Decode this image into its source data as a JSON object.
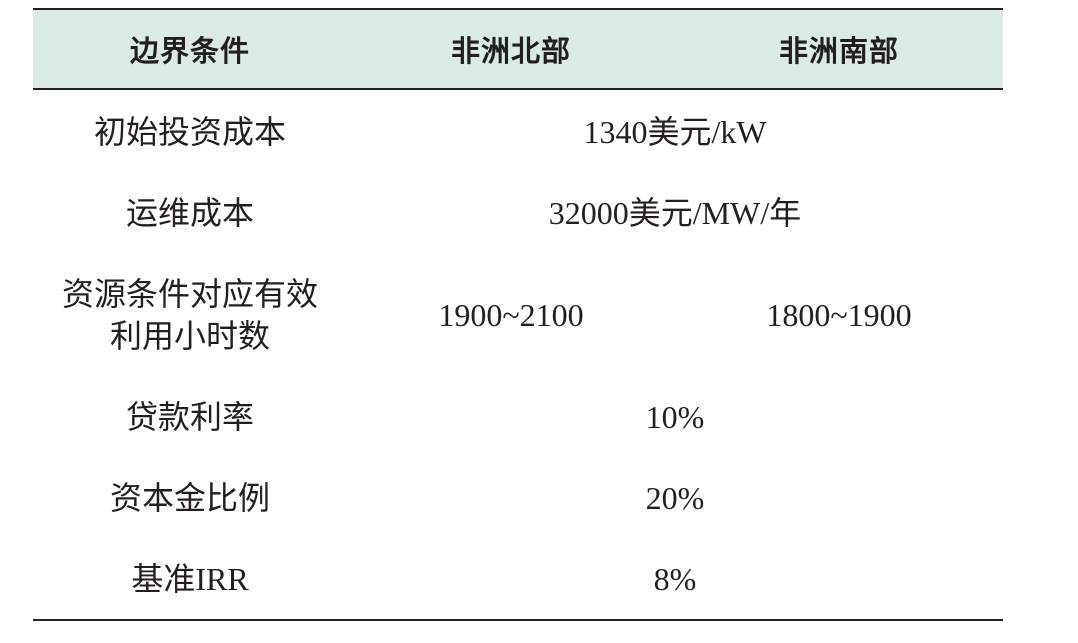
{
  "table": {
    "headers": [
      "边界条件",
      "非洲北部",
      "非洲南部"
    ],
    "rows": [
      {
        "label": "初始投资成本",
        "value": "1340美元/kW"
      },
      {
        "label": "运维成本",
        "value": "32000美元/MW/年"
      },
      {
        "label_lines": [
          "资源条件对应有效",
          "利用小时数"
        ],
        "north": "1900~2100",
        "south": "1800~1900"
      },
      {
        "label": "贷款利率",
        "value": "10%"
      },
      {
        "label": "资本金比例",
        "value": "20%"
      },
      {
        "label": "基准IRR",
        "value": "8%"
      }
    ]
  },
  "colors": {
    "header_background": "#d9ebe4",
    "rule": "#231f20",
    "text": "#231f20"
  }
}
